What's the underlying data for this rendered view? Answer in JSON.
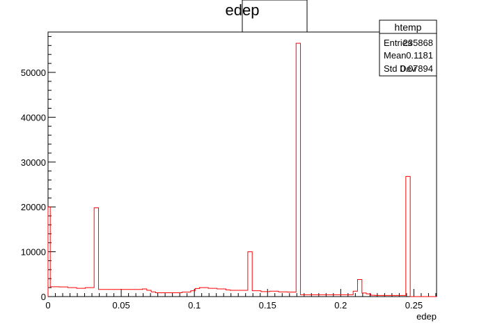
{
  "chart_data": {
    "type": "bar",
    "title": "edep",
    "xlabel": "edep",
    "ylabel": "",
    "xlim": [
      0,
      0.2655
    ],
    "ylim": [
      0,
      59000
    ],
    "line_color": "#ff0000",
    "x_ticks": [
      {
        "value": 0,
        "label": "0"
      },
      {
        "value": 0.05,
        "label": "0.05"
      },
      {
        "value": 0.1,
        "label": "0.1"
      },
      {
        "value": 0.15,
        "label": "0.15"
      },
      {
        "value": 0.2,
        "label": "0.2"
      },
      {
        "value": 0.25,
        "label": "0.25"
      }
    ],
    "y_ticks": [
      {
        "value": 0,
        "label": "0"
      },
      {
        "value": 10000,
        "label": "10000"
      },
      {
        "value": 20000,
        "label": "20000"
      },
      {
        "value": 30000,
        "label": "30000"
      },
      {
        "value": 40000,
        "label": "40000"
      },
      {
        "value": 50000,
        "label": "50000"
      }
    ],
    "bins": [
      {
        "x0": 0.0,
        "x1": 0.0015,
        "y": 20000
      },
      {
        "x0": 0.0015,
        "x1": 0.0075,
        "y": 2200
      },
      {
        "x0": 0.0075,
        "x1": 0.0135,
        "y": 2150
      },
      {
        "x0": 0.0135,
        "x1": 0.0195,
        "y": 2000
      },
      {
        "x0": 0.0195,
        "x1": 0.0255,
        "y": 1850
      },
      {
        "x0": 0.0255,
        "x1": 0.0315,
        "y": 2000
      },
      {
        "x0": 0.0315,
        "x1": 0.0345,
        "y": 19800
      },
      {
        "x0": 0.0345,
        "x1": 0.0645,
        "y": 1600
      },
      {
        "x0": 0.0645,
        "x1": 0.0675,
        "y": 1700
      },
      {
        "x0": 0.0675,
        "x1": 0.0705,
        "y": 1400
      },
      {
        "x0": 0.0705,
        "x1": 0.0735,
        "y": 1050
      },
      {
        "x0": 0.0735,
        "x1": 0.0915,
        "y": 850
      },
      {
        "x0": 0.0915,
        "x1": 0.0975,
        "y": 1000
      },
      {
        "x0": 0.0975,
        "x1": 0.1005,
        "y": 1300
      },
      {
        "x0": 0.1005,
        "x1": 0.1035,
        "y": 1800
      },
      {
        "x0": 0.1035,
        "x1": 0.1095,
        "y": 2000
      },
      {
        "x0": 0.1095,
        "x1": 0.1155,
        "y": 1850
      },
      {
        "x0": 0.1155,
        "x1": 0.1215,
        "y": 1700
      },
      {
        "x0": 0.1215,
        "x1": 0.1245,
        "y": 1500
      },
      {
        "x0": 0.1245,
        "x1": 0.1365,
        "y": 1400
      },
      {
        "x0": 0.1365,
        "x1": 0.1395,
        "y": 10000
      },
      {
        "x0": 0.1395,
        "x1": 0.1455,
        "y": 1300
      },
      {
        "x0": 0.1455,
        "x1": 0.1515,
        "y": 1100
      },
      {
        "x0": 0.1515,
        "x1": 0.1575,
        "y": 1200
      },
      {
        "x0": 0.1575,
        "x1": 0.1635,
        "y": 1050
      },
      {
        "x0": 0.1635,
        "x1": 0.1695,
        "y": 1000
      },
      {
        "x0": 0.1695,
        "x1": 0.1725,
        "y": 56500
      },
      {
        "x0": 0.1725,
        "x1": 0.2085,
        "y": 400
      },
      {
        "x0": 0.2085,
        "x1": 0.2115,
        "y": 1200
      },
      {
        "x0": 0.2115,
        "x1": 0.2145,
        "y": 3800
      },
      {
        "x0": 0.2145,
        "x1": 0.2175,
        "y": 800
      },
      {
        "x0": 0.2175,
        "x1": 0.2205,
        "y": 600
      },
      {
        "x0": 0.2205,
        "x1": 0.2235,
        "y": 300
      },
      {
        "x0": 0.2235,
        "x1": 0.2445,
        "y": 250
      },
      {
        "x0": 0.2445,
        "x1": 0.2475,
        "y": 26800
      },
      {
        "x0": 0.2475,
        "x1": 0.2655,
        "y": 0
      }
    ]
  },
  "stats_box": {
    "name": "htemp",
    "rows": [
      {
        "label": "Entries",
        "value": "235868"
      },
      {
        "label": "Mean",
        "value": "0.1181"
      },
      {
        "label": "Std Dev",
        "value": "0.07894"
      }
    ]
  }
}
